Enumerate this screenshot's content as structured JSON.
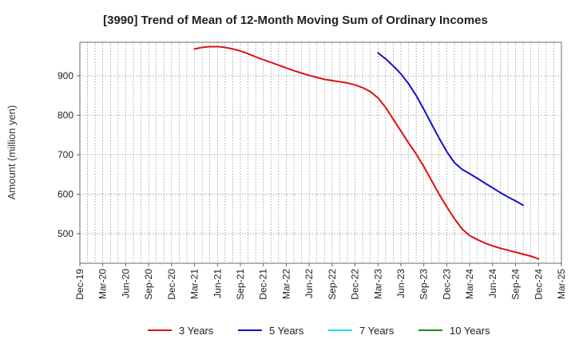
{
  "chart_data": {
    "type": "line",
    "title": "[3990]  Trend of Mean of 12-Month Moving Sum of Ordinary Incomes",
    "xlabel": "",
    "ylabel": "Amount (million yen)",
    "ylim": [
      425,
      985
    ],
    "yticks": [
      500,
      600,
      700,
      800,
      900
    ],
    "grid": true,
    "legend_position": "bottom",
    "x_tick_labels": [
      "Dec-19",
      "Mar-20",
      "Jun-20",
      "Sep-20",
      "Dec-20",
      "Mar-21",
      "Jun-21",
      "Sep-21",
      "Dec-21",
      "Mar-22",
      "Jun-22",
      "Sep-22",
      "Dec-22",
      "Mar-23",
      "Jun-23",
      "Sep-23",
      "Dec-23",
      "Mar-24",
      "Jun-24",
      "Sep-24",
      "Dec-24",
      "Mar-25"
    ],
    "x_start_index": 0,
    "x_months_total": 63,
    "series": [
      {
        "name": "3 Years",
        "color": "#dd1111",
        "start_month": 15,
        "values": [
          968,
          972,
          974,
          974,
          972,
          968,
          963,
          956,
          948,
          941,
          934,
          927,
          920,
          913,
          907,
          901,
          896,
          891,
          888,
          885,
          882,
          877,
          870,
          860,
          844,
          820,
          790,
          760,
          730,
          702,
          670,
          635,
          600,
          568,
          538,
          512,
          495,
          485,
          476,
          469,
          463,
          458,
          453,
          448,
          443,
          436
        ]
      },
      {
        "name": "5 Years",
        "color": "#1111cc",
        "start_month": 39,
        "values": [
          958,
          943,
          925,
          905,
          880,
          850,
          815,
          778,
          742,
          708,
          680,
          663,
          652,
          640,
          628,
          616,
          604,
          593,
          583,
          572
        ]
      },
      {
        "name": "7 Years",
        "color": "#22dddd",
        "start_month": 0,
        "values": []
      },
      {
        "name": "10 Years",
        "color": "#228822",
        "start_month": 0,
        "values": []
      }
    ]
  }
}
